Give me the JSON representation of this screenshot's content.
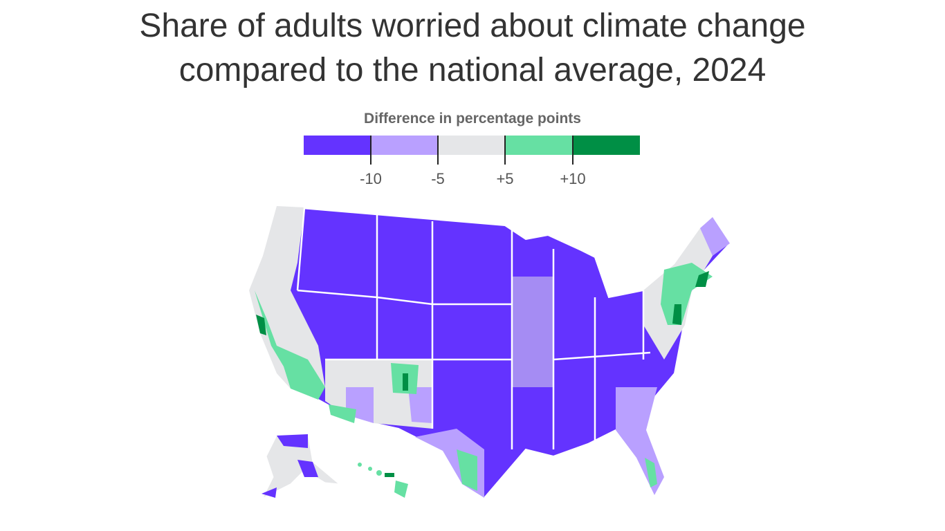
{
  "title_line1": "Share of adults worried about climate change",
  "title_line2": "compared to the national average, 2024",
  "legend": {
    "title": "Difference in percentage points",
    "bins": [
      {
        "range": "< -10",
        "color": "#6433ff"
      },
      {
        "range": "-10 to -5",
        "color": "#b9a0ff"
      },
      {
        "range": "-5 to +5",
        "color": "#e5e6e8"
      },
      {
        "range": "+5 to +10",
        "color": "#66e0a3"
      },
      {
        "range": "> +10",
        "color": "#008f45"
      }
    ],
    "tick_labels": [
      "-10",
      "-5",
      "+5",
      "+10"
    ]
  },
  "map": {
    "geography": "US counties",
    "projection": "Albers USA"
  }
}
